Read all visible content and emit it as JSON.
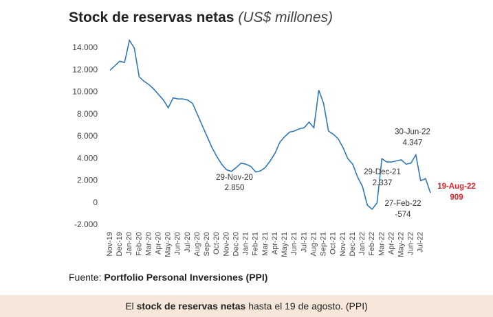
{
  "title": "Stock de reservas netas",
  "title_unit": "(US$ millones)",
  "source": {
    "prefix": "Fuente:",
    "name": "Portfolio Personal Inversiones (PPI)"
  },
  "caption": {
    "before": "El",
    "bold": "stock de reservas netas",
    "after": "hasta el 19 de agosto. (PPI)"
  },
  "chart_data": {
    "type": "line",
    "categories": [
      "Nov-19",
      null,
      "Dec-19",
      null,
      "Jan-20",
      null,
      "Feb-20",
      null,
      "Mar-20",
      null,
      "Apr-20",
      null,
      "May-20",
      null,
      "Jun-20",
      null,
      "Jul-20",
      null,
      "Aug-20",
      null,
      "Sep-20",
      null,
      "Oct-20",
      null,
      "Nov-20",
      null,
      "Dec-20",
      null,
      "Jan-21",
      null,
      "Feb-21",
      null,
      "Mar-21",
      null,
      "Apr-21",
      null,
      "May-21",
      null,
      "Jun-21",
      null,
      "Jul-21",
      null,
      "Aug-21",
      null,
      "Sep-21",
      null,
      "Oct-21",
      null,
      "Nov-21",
      null,
      "Dec-21",
      null,
      "Jan-22",
      null,
      "Feb-22",
      null,
      "Mar-22",
      null,
      "Apr-22",
      null,
      "May-22",
      null,
      "Jun-22",
      null,
      "Jul-22",
      null,
      null
    ],
    "series": [
      {
        "name": "Reservas netas",
        "color": "#2f77b8",
        "values": [
          12000,
          12400,
          12800,
          12700,
          14700,
          14000,
          11400,
          11000,
          10700,
          10300,
          9800,
          9300,
          8600,
          9500,
          9400,
          9400,
          9300,
          9000,
          8000,
          7000,
          6000,
          5000,
          4200,
          3500,
          3000,
          2850,
          3200,
          3600,
          3500,
          3300,
          2800,
          2900,
          3200,
          3800,
          4500,
          5500,
          6000,
          6400,
          6500,
          6700,
          6800,
          7300,
          6800,
          10200,
          9000,
          6500,
          6200,
          5800,
          5000,
          4000,
          3500,
          2337,
          1500,
          -200,
          -574,
          0,
          4000,
          3700,
          3700,
          3800,
          3900,
          3500,
          3600,
          4347,
          2000,
          2200,
          909
        ]
      }
    ],
    "ylim": [
      -2000,
      14000
    ],
    "yticks": [
      {
        "value": -2000,
        "label": "-2.000"
      },
      0,
      {
        "value": 2000,
        "label": "2.000"
      },
      {
        "value": 4000,
        "label": "4.000"
      },
      {
        "value": 6000,
        "label": "6.000"
      },
      {
        "value": 8000,
        "label": "8.000"
      },
      {
        "value": 10000,
        "label": "10.000"
      },
      {
        "value": 12000,
        "label": "12.000"
      },
      {
        "value": 14000,
        "label": "14.000"
      }
    ],
    "annotations": [
      {
        "date": "29-Nov-20",
        "value": 2850,
        "value_label": "2.850"
      },
      {
        "date": "29-Dec-21",
        "value": 2337,
        "value_label": "2.337"
      },
      {
        "date": "27-Feb-22",
        "value": -574,
        "value_label": "-574"
      },
      {
        "date": "30-Jun-22",
        "value": 4347,
        "value_label": "4.347"
      },
      {
        "date": "19-Aug-22",
        "value": 909,
        "value_label": "909",
        "color": "#e0242b"
      }
    ]
  }
}
